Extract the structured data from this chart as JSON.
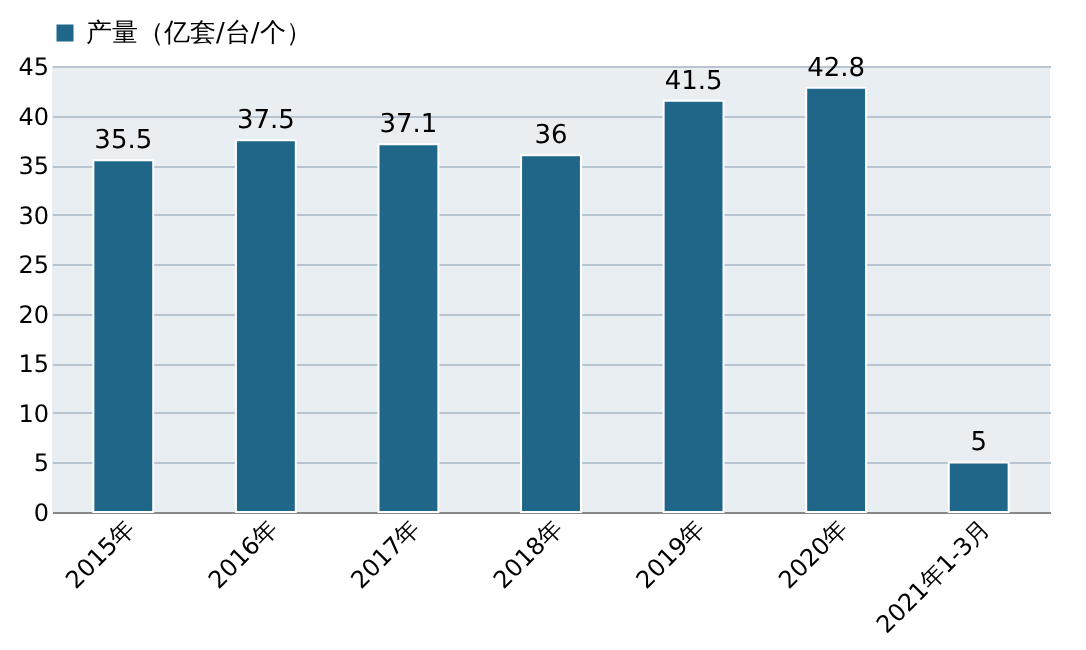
{
  "chart_data": {
    "type": "bar",
    "categories": [
      "2015年",
      "2016年",
      "2017年",
      "2018年",
      "2019年",
      "2020年",
      "2021年1-3月"
    ],
    "series": [
      {
        "name": "产量（亿套/台/个）",
        "color": "#1f6688",
        "values": [
          35.5,
          37.5,
          37.1,
          36,
          41.5,
          42.8,
          5
        ]
      }
    ],
    "ylim": [
      0,
      45
    ],
    "yticks": [
      0,
      5,
      10,
      15,
      20,
      25,
      30,
      35,
      40,
      45
    ],
    "grid": "y",
    "legend": "top",
    "data_labels": true
  }
}
